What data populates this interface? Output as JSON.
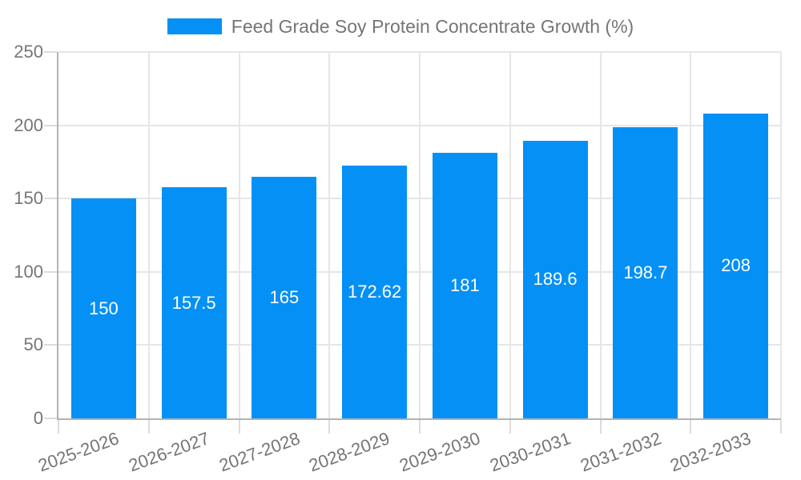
{
  "chart_data": {
    "type": "bar",
    "title": "Feed Grade Soy Protein Concentrate Growth (%)",
    "categories": [
      "2025-2026",
      "2026-2027",
      "2027-2028",
      "2028-2029",
      "2029-2030",
      "2030-2031",
      "2031-2032",
      "2032-2033"
    ],
    "values": [
      150,
      157.5,
      165,
      172.62,
      181,
      189.6,
      198.7,
      208
    ],
    "xlabel": "",
    "ylabel": "",
    "ylim": [
      0,
      250
    ],
    "yticks": [
      0,
      50,
      100,
      150,
      200,
      250
    ],
    "grid": true,
    "legend_position": "top",
    "bar_labels_inside": true
  },
  "colors": {
    "bar": "#0590f6",
    "bar_label": "#ffffff",
    "grid": "#e6e6e6",
    "tick": "#dcdcdc",
    "axis": "#b3b3b3",
    "text": "#757575",
    "background": "#ffffff"
  }
}
